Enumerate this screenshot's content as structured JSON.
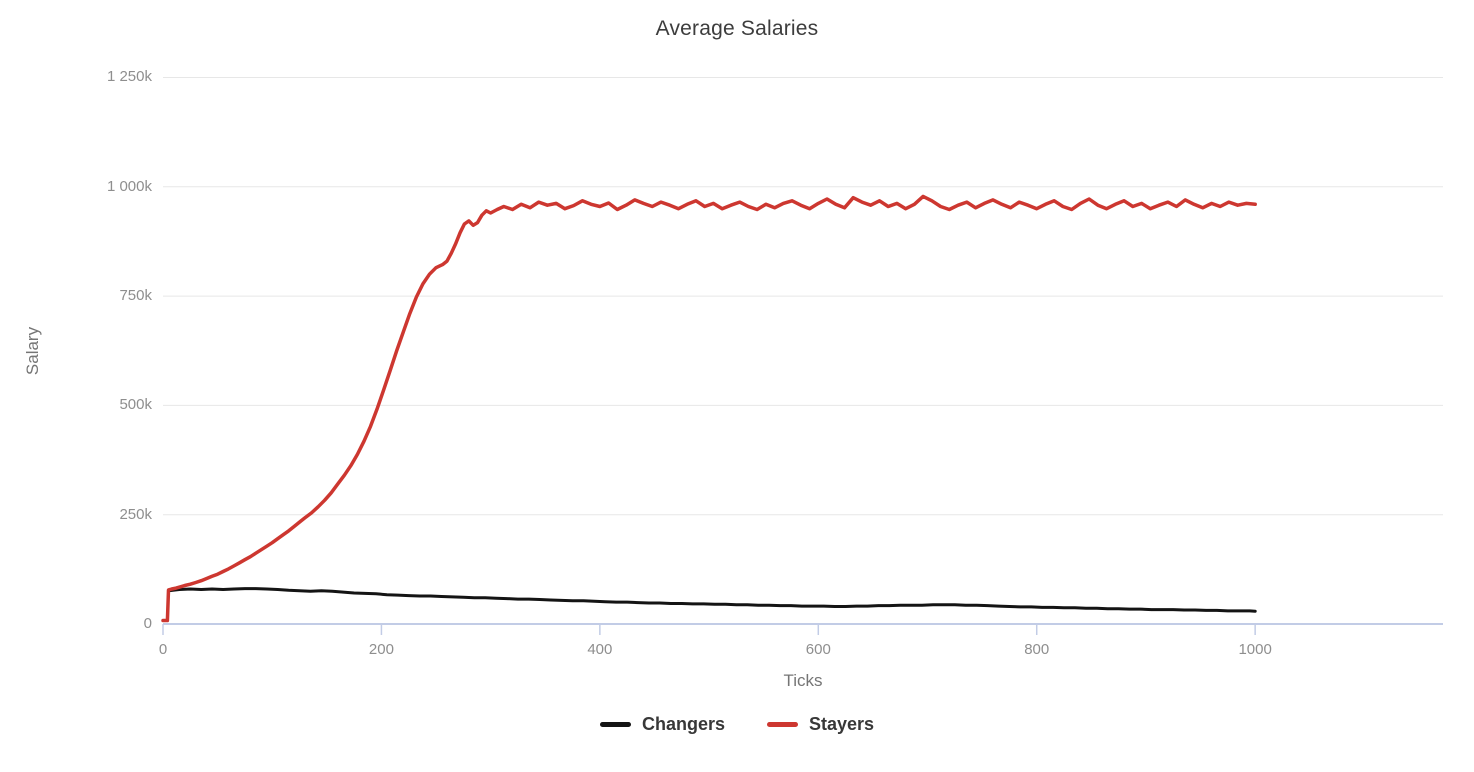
{
  "title": "Average Salaries",
  "x_axis_title": "Ticks",
  "y_axis_title": "Salary",
  "colors": {
    "background": "#ffffff",
    "title_text": "#3d3d3d",
    "tick_text": "#8e8e8e",
    "axis_title_text": "#757575",
    "legend_text": "#383838",
    "gridline": "#e7e7e7",
    "axis_line": "#c2cce6",
    "changers_line": "#141414",
    "stayers_line": "#cd3730"
  },
  "legend": {
    "items": [
      {
        "label": "Changers",
        "color": "#141414"
      },
      {
        "label": "Stayers",
        "color": "#cd3730"
      }
    ]
  },
  "chart_data": {
    "type": "line",
    "title": "Average Salaries",
    "xlabel": "Ticks",
    "ylabel": "Salary",
    "units_note": "y values stored in thousands (k)",
    "xlim": [
      0,
      1172
    ],
    "ylim_thousands": [
      0,
      1290
    ],
    "grid": "horizontal-only",
    "legend_position": "bottom-center",
    "x_ticks": [
      {
        "value": 0,
        "label": "0"
      },
      {
        "value": 200,
        "label": "200"
      },
      {
        "value": 400,
        "label": "400"
      },
      {
        "value": 600,
        "label": "600"
      },
      {
        "value": 800,
        "label": "800"
      },
      {
        "value": 1000,
        "label": "1000"
      }
    ],
    "y_ticks": [
      {
        "value": 0,
        "label": "0"
      },
      {
        "value": 250,
        "label": "250k"
      },
      {
        "value": 500,
        "label": "500k"
      },
      {
        "value": 750,
        "label": "750k"
      },
      {
        "value": 1000,
        "label": "1 000k"
      },
      {
        "value": 1250,
        "label": "1 250k"
      }
    ],
    "series": [
      {
        "name": "Changers",
        "color": "#141414",
        "stroke_width": 3,
        "points": [
          [
            5,
            76
          ],
          [
            15,
            79
          ],
          [
            25,
            80
          ],
          [
            35,
            79
          ],
          [
            45,
            80
          ],
          [
            55,
            79
          ],
          [
            65,
            80
          ],
          [
            75,
            81
          ],
          [
            85,
            81
          ],
          [
            95,
            80
          ],
          [
            105,
            79
          ],
          [
            115,
            77
          ],
          [
            125,
            76
          ],
          [
            135,
            75
          ],
          [
            145,
            76
          ],
          [
            155,
            75
          ],
          [
            165,
            73
          ],
          [
            175,
            71
          ],
          [
            185,
            70
          ],
          [
            195,
            69
          ],
          [
            205,
            67
          ],
          [
            215,
            66
          ],
          [
            225,
            65
          ],
          [
            235,
            64
          ],
          [
            245,
            64
          ],
          [
            255,
            63
          ],
          [
            265,
            62
          ],
          [
            275,
            61
          ],
          [
            285,
            60
          ],
          [
            295,
            60
          ],
          [
            305,
            59
          ],
          [
            315,
            58
          ],
          [
            325,
            57
          ],
          [
            335,
            57
          ],
          [
            345,
            56
          ],
          [
            355,
            55
          ],
          [
            365,
            54
          ],
          [
            375,
            53
          ],
          [
            385,
            53
          ],
          [
            395,
            52
          ],
          [
            405,
            51
          ],
          [
            415,
            50
          ],
          [
            425,
            50
          ],
          [
            435,
            49
          ],
          [
            445,
            48
          ],
          [
            455,
            48
          ],
          [
            465,
            47
          ],
          [
            475,
            47
          ],
          [
            485,
            46
          ],
          [
            495,
            46
          ],
          [
            505,
            45
          ],
          [
            515,
            45
          ],
          [
            525,
            44
          ],
          [
            535,
            44
          ],
          [
            545,
            43
          ],
          [
            555,
            43
          ],
          [
            565,
            42
          ],
          [
            575,
            42
          ],
          [
            585,
            41
          ],
          [
            595,
            41
          ],
          [
            605,
            41
          ],
          [
            615,
            40
          ],
          [
            625,
            40
          ],
          [
            635,
            41
          ],
          [
            645,
            41
          ],
          [
            655,
            42
          ],
          [
            665,
            42
          ],
          [
            675,
            43
          ],
          [
            685,
            43
          ],
          [
            695,
            43
          ],
          [
            705,
            44
          ],
          [
            715,
            44
          ],
          [
            725,
            44
          ],
          [
            735,
            43
          ],
          [
            745,
            43
          ],
          [
            755,
            42
          ],
          [
            765,
            41
          ],
          [
            775,
            40
          ],
          [
            785,
            39
          ],
          [
            795,
            39
          ],
          [
            805,
            38
          ],
          [
            815,
            38
          ],
          [
            825,
            37
          ],
          [
            835,
            37
          ],
          [
            845,
            36
          ],
          [
            855,
            36
          ],
          [
            865,
            35
          ],
          [
            875,
            35
          ],
          [
            885,
            34
          ],
          [
            895,
            34
          ],
          [
            905,
            33
          ],
          [
            915,
            33
          ],
          [
            925,
            33
          ],
          [
            935,
            32
          ],
          [
            945,
            32
          ],
          [
            955,
            31
          ],
          [
            965,
            31
          ],
          [
            975,
            30
          ],
          [
            985,
            30
          ],
          [
            995,
            30
          ],
          [
            1000,
            29
          ]
        ]
      },
      {
        "name": "Stayers",
        "color": "#cd3730",
        "stroke_width": 3.5,
        "points": [
          [
            0,
            8
          ],
          [
            3,
            8
          ],
          [
            4,
            8
          ],
          [
            5,
            78
          ],
          [
            8,
            80
          ],
          [
            12,
            82
          ],
          [
            16,
            85
          ],
          [
            20,
            88
          ],
          [
            25,
            91
          ],
          [
            30,
            95
          ],
          [
            35,
            99
          ],
          [
            40,
            104
          ],
          [
            45,
            109
          ],
          [
            50,
            114
          ],
          [
            55,
            120
          ],
          [
            60,
            126
          ],
          [
            65,
            133
          ],
          [
            70,
            140
          ],
          [
            75,
            147
          ],
          [
            80,
            154
          ],
          [
            85,
            162
          ],
          [
            90,
            170
          ],
          [
            95,
            178
          ],
          [
            100,
            186
          ],
          [
            105,
            195
          ],
          [
            110,
            204
          ],
          [
            115,
            213
          ],
          [
            120,
            223
          ],
          [
            125,
            233
          ],
          [
            130,
            243
          ],
          [
            136,
            254
          ],
          [
            142,
            268
          ],
          [
            148,
            283
          ],
          [
            154,
            300
          ],
          [
            160,
            320
          ],
          [
            166,
            340
          ],
          [
            172,
            362
          ],
          [
            178,
            388
          ],
          [
            184,
            418
          ],
          [
            190,
            452
          ],
          [
            196,
            492
          ],
          [
            202,
            535
          ],
          [
            208,
            580
          ],
          [
            214,
            625
          ],
          [
            220,
            668
          ],
          [
            226,
            710
          ],
          [
            232,
            748
          ],
          [
            238,
            778
          ],
          [
            244,
            800
          ],
          [
            250,
            815
          ],
          [
            256,
            822
          ],
          [
            260,
            830
          ],
          [
            264,
            848
          ],
          [
            268,
            870
          ],
          [
            272,
            895
          ],
          [
            276,
            915
          ],
          [
            280,
            922
          ],
          [
            284,
            912
          ],
          [
            288,
            918
          ],
          [
            292,
            935
          ],
          [
            296,
            945
          ],
          [
            300,
            940
          ],
          [
            306,
            948
          ],
          [
            312,
            955
          ],
          [
            320,
            948
          ],
          [
            328,
            960
          ],
          [
            336,
            952
          ],
          [
            344,
            965
          ],
          [
            352,
            958
          ],
          [
            360,
            962
          ],
          [
            368,
            950
          ],
          [
            376,
            957
          ],
          [
            384,
            968
          ],
          [
            392,
            960
          ],
          [
            400,
            955
          ],
          [
            408,
            963
          ],
          [
            416,
            948
          ],
          [
            424,
            958
          ],
          [
            432,
            970
          ],
          [
            440,
            962
          ],
          [
            448,
            955
          ],
          [
            456,
            965
          ],
          [
            464,
            958
          ],
          [
            472,
            950
          ],
          [
            480,
            960
          ],
          [
            488,
            968
          ],
          [
            496,
            955
          ],
          [
            504,
            962
          ],
          [
            512,
            950
          ],
          [
            520,
            958
          ],
          [
            528,
            965
          ],
          [
            536,
            955
          ],
          [
            544,
            948
          ],
          [
            552,
            960
          ],
          [
            560,
            952
          ],
          [
            568,
            962
          ],
          [
            576,
            968
          ],
          [
            584,
            958
          ],
          [
            592,
            950
          ],
          [
            600,
            962
          ],
          [
            608,
            972
          ],
          [
            616,
            960
          ],
          [
            624,
            952
          ],
          [
            632,
            975
          ],
          [
            640,
            965
          ],
          [
            648,
            958
          ],
          [
            656,
            968
          ],
          [
            664,
            955
          ],
          [
            672,
            962
          ],
          [
            680,
            950
          ],
          [
            688,
            960
          ],
          [
            696,
            978
          ],
          [
            704,
            968
          ],
          [
            712,
            955
          ],
          [
            720,
            948
          ],
          [
            728,
            958
          ],
          [
            736,
            965
          ],
          [
            744,
            952
          ],
          [
            752,
            962
          ],
          [
            760,
            970
          ],
          [
            768,
            960
          ],
          [
            776,
            952
          ],
          [
            784,
            965
          ],
          [
            792,
            958
          ],
          [
            800,
            950
          ],
          [
            808,
            960
          ],
          [
            816,
            968
          ],
          [
            824,
            955
          ],
          [
            832,
            948
          ],
          [
            840,
            962
          ],
          [
            848,
            972
          ],
          [
            856,
            958
          ],
          [
            864,
            950
          ],
          [
            872,
            960
          ],
          [
            880,
            968
          ],
          [
            888,
            955
          ],
          [
            896,
            962
          ],
          [
            904,
            950
          ],
          [
            912,
            958
          ],
          [
            920,
            965
          ],
          [
            928,
            955
          ],
          [
            936,
            970
          ],
          [
            944,
            960
          ],
          [
            952,
            952
          ],
          [
            960,
            962
          ],
          [
            968,
            955
          ],
          [
            976,
            965
          ],
          [
            984,
            958
          ],
          [
            992,
            962
          ],
          [
            1000,
            960
          ]
        ]
      }
    ]
  }
}
